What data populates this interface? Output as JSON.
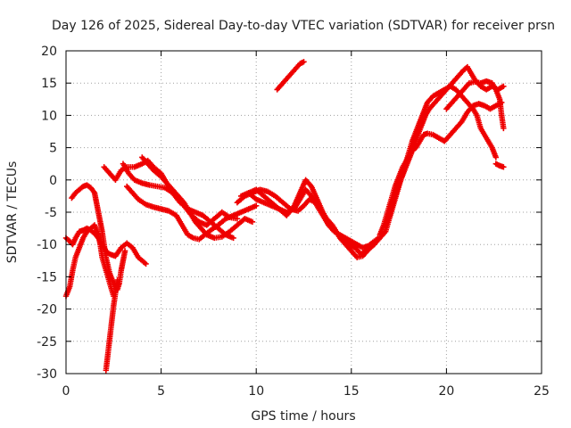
{
  "chart_data": {
    "type": "scatter",
    "title": "Day 126 of 2025, Sidereal Day-to-day VTEC variation (SDTVAR) for receiver prsn",
    "xlabel": "GPS time / hours",
    "ylabel": "SDTVAR / TECUs",
    "xlim": [
      0,
      25
    ],
    "ylim": [
      -30,
      20
    ],
    "xticks": [
      0,
      5,
      10,
      15,
      20,
      25
    ],
    "yticks": [
      -30,
      -25,
      -20,
      -15,
      -10,
      -5,
      0,
      5,
      10,
      15,
      20
    ],
    "grid": true,
    "marker": "plus",
    "color": "#ee0000",
    "series": [
      {
        "values": [
          [
            0.0,
            -18.0
          ],
          [
            0.2,
            -16.5
          ],
          [
            0.35,
            -14.0
          ],
          [
            0.5,
            -12.0
          ],
          [
            0.7,
            -10.5
          ],
          [
            0.9,
            -9.0
          ],
          [
            1.1,
            -8.0
          ],
          [
            1.3,
            -7.5
          ],
          [
            1.5,
            -7.0
          ],
          [
            1.7,
            -8.5
          ],
          [
            1.8,
            -10.0
          ],
          [
            1.9,
            -12.0
          ],
          [
            2.1,
            -14.0
          ],
          [
            2.3,
            -16.0
          ],
          [
            2.5,
            -18.0
          ]
        ]
      },
      {
        "values": [
          [
            0.0,
            -9.0
          ],
          [
            0.2,
            -9.5
          ],
          [
            0.35,
            -10.0
          ],
          [
            0.5,
            -9.0
          ],
          [
            0.7,
            -8.0
          ],
          [
            0.9,
            -7.8
          ],
          [
            1.1,
            -7.5
          ],
          [
            1.3,
            -7.8
          ],
          [
            1.5,
            -8.3
          ],
          [
            1.7,
            -9.0
          ],
          [
            1.9,
            -10.0
          ],
          [
            2.1,
            -11.0
          ],
          [
            2.3,
            -11.5
          ],
          [
            2.6,
            -11.8
          ],
          [
            2.9,
            -10.5
          ],
          [
            3.2,
            -9.8
          ],
          [
            3.5,
            -10.5
          ],
          [
            3.8,
            -12.0
          ],
          [
            4.2,
            -13.0
          ]
        ]
      },
      {
        "values": [
          [
            0.3,
            -2.8
          ],
          [
            0.5,
            -2.0
          ],
          [
            0.7,
            -1.5
          ],
          [
            0.9,
            -1.0
          ],
          [
            1.1,
            -0.8
          ],
          [
            1.3,
            -1.2
          ],
          [
            1.5,
            -2.0
          ],
          [
            1.6,
            -3.5
          ],
          [
            1.7,
            -5.0
          ],
          [
            1.8,
            -6.5
          ],
          [
            1.9,
            -8.0
          ],
          [
            2.0,
            -10.0
          ],
          [
            2.1,
            -12.0
          ],
          [
            2.3,
            -14.5
          ],
          [
            2.5,
            -16.0
          ],
          [
            2.7,
            -17.0
          ],
          [
            2.8,
            -16.0
          ],
          [
            2.9,
            -14.0
          ],
          [
            3.0,
            -12.5
          ],
          [
            3.1,
            -11.0
          ]
        ]
      },
      {
        "values": [
          [
            2.1,
            -29.5
          ],
          [
            2.2,
            -27.0
          ],
          [
            2.3,
            -24.5
          ],
          [
            2.4,
            -22.0
          ],
          [
            2.5,
            -19.5
          ],
          [
            2.6,
            -17.5
          ],
          [
            2.7,
            -15.5
          ]
        ]
      },
      {
        "values": [
          [
            2.0,
            2.0
          ],
          [
            2.3,
            1.0
          ],
          [
            2.6,
            0.0
          ],
          [
            2.9,
            1.5
          ],
          [
            3.2,
            2.0
          ],
          [
            3.6,
            2.0
          ],
          [
            4.0,
            2.5
          ],
          [
            4.3,
            3.0
          ],
          [
            4.6,
            2.0
          ],
          [
            5.0,
            1.0
          ],
          [
            5.4,
            -1.0
          ],
          [
            5.8,
            -2.5
          ],
          [
            6.2,
            -4.0
          ],
          [
            6.6,
            -5.5
          ],
          [
            7.0,
            -6.5
          ],
          [
            7.4,
            -7.0
          ],
          [
            7.8,
            -6.0
          ],
          [
            8.2,
            -5.0
          ],
          [
            8.6,
            -5.8
          ],
          [
            9.0,
            -6.0
          ]
        ]
      },
      {
        "values": [
          [
            3.0,
            2.5
          ],
          [
            3.3,
            1.0
          ],
          [
            3.6,
            0.0
          ],
          [
            4.0,
            -0.5
          ],
          [
            4.4,
            -0.8
          ],
          [
            4.8,
            -1.0
          ],
          [
            5.2,
            -1.2
          ],
          [
            5.6,
            -2.0
          ],
          [
            6.0,
            -3.5
          ],
          [
            6.4,
            -4.5
          ],
          [
            6.8,
            -5.0
          ],
          [
            7.2,
            -5.5
          ],
          [
            7.6,
            -6.5
          ],
          [
            8.0,
            -7.5
          ],
          [
            8.4,
            -8.5
          ],
          [
            8.8,
            -9.0
          ]
        ]
      },
      {
        "values": [
          [
            3.2,
            -1.0
          ],
          [
            3.5,
            -2.0
          ],
          [
            3.8,
            -3.0
          ],
          [
            4.2,
            -3.8
          ],
          [
            4.6,
            -4.2
          ],
          [
            5.0,
            -4.5
          ],
          [
            5.4,
            -4.8
          ],
          [
            5.8,
            -5.5
          ],
          [
            6.1,
            -7.0
          ],
          [
            6.4,
            -8.5
          ],
          [
            6.7,
            -9.0
          ],
          [
            7.0,
            -9.2
          ],
          [
            7.3,
            -8.5
          ],
          [
            7.6,
            -7.8
          ],
          [
            8.0,
            -7.0
          ],
          [
            8.4,
            -6.0
          ],
          [
            8.8,
            -5.5
          ],
          [
            9.2,
            -5.0
          ],
          [
            9.6,
            -4.5
          ],
          [
            10.0,
            -4.0
          ]
        ]
      },
      {
        "values": [
          [
            4.0,
            3.5
          ],
          [
            4.3,
            2.5
          ],
          [
            4.6,
            1.5
          ],
          [
            5.0,
            0.5
          ],
          [
            5.3,
            -0.5
          ],
          [
            5.6,
            -1.5
          ],
          [
            5.9,
            -2.5
          ],
          [
            6.2,
            -3.5
          ],
          [
            6.5,
            -5.0
          ],
          [
            6.8,
            -6.5
          ],
          [
            7.1,
            -7.5
          ],
          [
            7.4,
            -8.5
          ],
          [
            7.8,
            -9.0
          ],
          [
            8.2,
            -8.8
          ],
          [
            8.6,
            -8.0
          ],
          [
            9.0,
            -7.0
          ],
          [
            9.4,
            -6.0
          ],
          [
            9.8,
            -6.5
          ]
        ]
      },
      {
        "values": [
          [
            9.0,
            -3.5
          ],
          [
            9.4,
            -2.5
          ],
          [
            9.8,
            -2.0
          ],
          [
            10.2,
            -1.5
          ],
          [
            10.6,
            -1.8
          ],
          [
            11.0,
            -2.5
          ],
          [
            11.4,
            -3.5
          ],
          [
            11.8,
            -4.5
          ],
          [
            12.2,
            -4.8
          ],
          [
            12.5,
            -4.0
          ],
          [
            12.8,
            -3.0
          ],
          [
            13.1,
            -3.5
          ],
          [
            13.4,
            -5.0
          ],
          [
            13.7,
            -6.0
          ],
          [
            14.0,
            -7.0
          ],
          [
            14.3,
            -8.5
          ],
          [
            14.6,
            -9.5
          ],
          [
            14.9,
            -10.0
          ],
          [
            15.2,
            -10.5
          ],
          [
            15.5,
            -11.5
          ],
          [
            15.8,
            -11.0
          ],
          [
            16.1,
            -10.0
          ],
          [
            16.4,
            -9.0
          ]
        ]
      },
      {
        "values": [
          [
            9.2,
            -2.5
          ],
          [
            9.6,
            -2.0
          ],
          [
            10.0,
            -1.5
          ],
          [
            10.4,
            -2.5
          ],
          [
            10.8,
            -3.5
          ],
          [
            11.2,
            -4.5
          ],
          [
            11.6,
            -5.0
          ],
          [
            12.0,
            -4.5
          ],
          [
            12.3,
            -3.0
          ],
          [
            12.6,
            -1.5
          ],
          [
            12.9,
            -2.5
          ],
          [
            13.2,
            -4.0
          ],
          [
            13.5,
            -5.5
          ],
          [
            13.8,
            -7.0
          ],
          [
            14.1,
            -8.0
          ],
          [
            14.4,
            -8.5
          ],
          [
            14.7,
            -9.0
          ],
          [
            15.0,
            -9.5
          ],
          [
            15.3,
            -10.0
          ],
          [
            15.6,
            -10.5
          ],
          [
            15.9,
            -10.2
          ],
          [
            16.2,
            -9.5
          ]
        ]
      },
      {
        "values": [
          [
            9.6,
            -2.0
          ],
          [
            10.0,
            -3.0
          ],
          [
            10.4,
            -3.5
          ],
          [
            10.8,
            -4.0
          ],
          [
            11.2,
            -4.5
          ],
          [
            11.6,
            -5.5
          ],
          [
            12.0,
            -4.0
          ],
          [
            12.3,
            -2.0
          ],
          [
            12.6,
            0.0
          ],
          [
            12.9,
            -1.0
          ],
          [
            13.2,
            -3.0
          ],
          [
            13.5,
            -5.0
          ],
          [
            13.8,
            -6.5
          ],
          [
            14.1,
            -7.5
          ],
          [
            14.4,
            -9.0
          ],
          [
            14.7,
            -10.0
          ],
          [
            15.0,
            -11.0
          ],
          [
            15.3,
            -12.0
          ],
          [
            15.6,
            -11.8
          ],
          [
            15.9,
            -10.8
          ],
          [
            16.2,
            -10.0
          ]
        ]
      },
      {
        "values": [
          [
            11.1,
            14.0
          ],
          [
            11.4,
            15.0
          ],
          [
            11.7,
            16.0
          ],
          [
            12.0,
            17.0
          ],
          [
            12.3,
            18.0
          ],
          [
            12.5,
            18.3
          ]
        ]
      },
      {
        "values": [
          [
            16.2,
            -10.0
          ],
          [
            16.5,
            -9.0
          ],
          [
            16.8,
            -8.0
          ],
          [
            17.0,
            -6.0
          ],
          [
            17.2,
            -4.0
          ],
          [
            17.4,
            -2.0
          ],
          [
            17.6,
            0.0
          ],
          [
            17.8,
            1.5
          ],
          [
            18.0,
            3.0
          ],
          [
            18.2,
            4.5
          ],
          [
            18.4,
            5.0
          ],
          [
            18.6,
            6.0
          ],
          [
            18.8,
            7.0
          ],
          [
            19.0,
            7.2
          ],
          [
            19.3,
            7.0
          ],
          [
            19.6,
            6.5
          ],
          [
            19.9,
            6.0
          ],
          [
            20.2,
            7.0
          ],
          [
            20.5,
            8.0
          ],
          [
            20.8,
            9.0
          ],
          [
            21.1,
            10.5
          ],
          [
            21.4,
            11.5
          ],
          [
            21.7,
            11.8
          ],
          [
            22.0,
            11.5
          ],
          [
            22.3,
            11.0
          ],
          [
            22.6,
            11.5
          ],
          [
            22.9,
            12.0
          ]
        ]
      },
      {
        "values": [
          [
            16.5,
            -8.5
          ],
          [
            16.7,
            -7.0
          ],
          [
            16.9,
            -5.0
          ],
          [
            17.1,
            -3.0
          ],
          [
            17.3,
            -1.0
          ],
          [
            17.5,
            0.5
          ],
          [
            17.7,
            2.0
          ],
          [
            17.9,
            3.0
          ],
          [
            18.1,
            4.0
          ],
          [
            18.3,
            5.5
          ],
          [
            18.5,
            7.0
          ],
          [
            18.7,
            8.5
          ],
          [
            18.9,
            10.0
          ],
          [
            19.1,
            11.0
          ],
          [
            19.4,
            12.0
          ],
          [
            19.7,
            13.0
          ],
          [
            20.0,
            14.0
          ],
          [
            20.3,
            15.0
          ],
          [
            20.6,
            16.0
          ],
          [
            20.9,
            17.0
          ],
          [
            21.1,
            17.5
          ],
          [
            21.3,
            16.5
          ],
          [
            21.5,
            15.5
          ],
          [
            21.8,
            14.5
          ],
          [
            22.1,
            14.0
          ],
          [
            22.4,
            14.5
          ],
          [
            22.7,
            14.0
          ],
          [
            23.0,
            14.5
          ]
        ]
      },
      {
        "values": [
          [
            16.8,
            -7.0
          ],
          [
            17.0,
            -5.5
          ],
          [
            17.2,
            -3.5
          ],
          [
            17.4,
            -1.5
          ],
          [
            17.6,
            0.0
          ],
          [
            17.8,
            2.0
          ],
          [
            18.0,
            4.0
          ],
          [
            18.2,
            6.0
          ],
          [
            18.4,
            7.5
          ],
          [
            18.6,
            9.0
          ],
          [
            18.8,
            10.5
          ],
          [
            19.0,
            12.0
          ],
          [
            19.3,
            13.0
          ],
          [
            19.6,
            13.5
          ],
          [
            19.9,
            14.0
          ],
          [
            20.2,
            14.5
          ],
          [
            20.5,
            14.0
          ],
          [
            20.8,
            13.0
          ],
          [
            21.1,
            12.0
          ],
          [
            21.4,
            11.0
          ],
          [
            21.6,
            10.0
          ],
          [
            21.8,
            8.0
          ],
          [
            22.0,
            7.0
          ],
          [
            22.2,
            6.0
          ],
          [
            22.4,
            5.0
          ],
          [
            22.6,
            3.5
          ]
        ]
      },
      {
        "values": [
          [
            20.0,
            11.0
          ],
          [
            20.3,
            12.0
          ],
          [
            20.6,
            13.0
          ],
          [
            20.9,
            14.0
          ],
          [
            21.2,
            15.0
          ],
          [
            21.5,
            15.2
          ],
          [
            21.8,
            15.0
          ],
          [
            22.1,
            15.3
          ],
          [
            22.4,
            15.0
          ],
          [
            22.6,
            14.0
          ],
          [
            22.8,
            12.5
          ],
          [
            22.9,
            10.0
          ],
          [
            23.0,
            8.0
          ]
        ]
      },
      {
        "values": [
          [
            22.6,
            2.5
          ],
          [
            22.8,
            2.2
          ],
          [
            23.0,
            2.0
          ]
        ]
      }
    ]
  }
}
